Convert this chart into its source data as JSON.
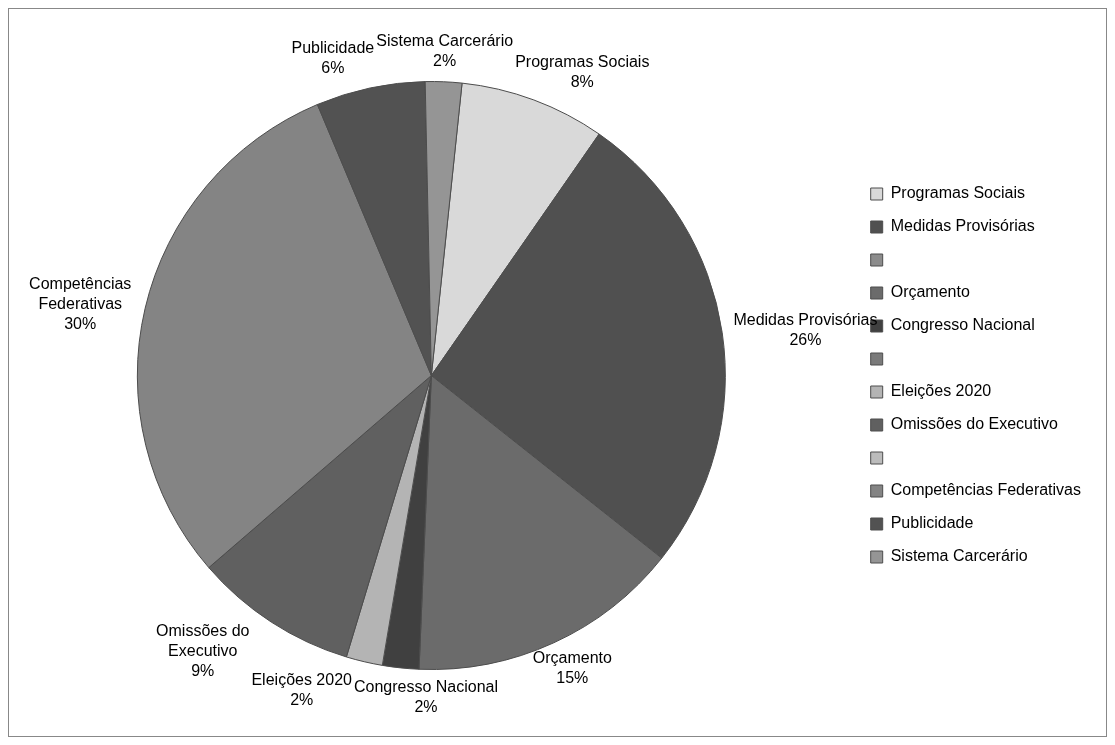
{
  "chart_data": {
    "type": "pie",
    "categories": [
      "Programas Sociais",
      "Medidas Provisórias",
      null,
      "Orçamento",
      "Congresso Nacional",
      null,
      "Eleições 2020",
      "Omissões do Executivo",
      null,
      "Competências Federativas",
      "Publicidade",
      "Sistema Carcerário"
    ],
    "values": [
      8,
      26,
      0,
      15,
      2,
      0,
      2,
      9,
      0,
      30,
      6,
      2
    ],
    "value_labels": [
      "8%",
      "26%",
      null,
      "15%",
      "2%",
      null,
      "2%",
      "9%",
      null,
      "30%",
      "6%",
      "2%"
    ],
    "colors": [
      "#d9d9d9",
      "#505050",
      "#8c8c8c",
      "#6b6b6b",
      "#404040",
      "#7a7a7a",
      "#b4b4b4",
      "#606060",
      "#bcbcbc",
      "#848484",
      "#525252",
      "#959595"
    ],
    "legend": "right"
  }
}
